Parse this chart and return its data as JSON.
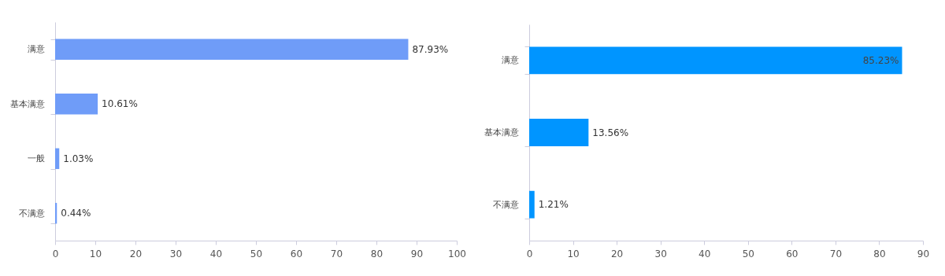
{
  "chart_data": [
    {
      "type": "bar",
      "orientation": "horizontal",
      "categories": [
        "满意",
        "基本满意",
        "一般",
        "不满意"
      ],
      "values": [
        87.93,
        10.61,
        1.03,
        0.44
      ],
      "value_labels": [
        "87.93%",
        "10.61%",
        "1.03%",
        "0.44%"
      ],
      "color": "#6f9cf8",
      "xlim": [
        0,
        100
      ],
      "xticks": [
        0,
        10,
        20,
        30,
        40,
        50,
        60,
        70,
        80,
        90,
        100
      ]
    },
    {
      "type": "bar",
      "orientation": "horizontal",
      "categories": [
        "满意",
        "基本满意",
        "不满意"
      ],
      "values": [
        85.23,
        13.56,
        1.21
      ],
      "value_labels": [
        "85.23%",
        "13.56%",
        "1.21%"
      ],
      "color": "#0095ff",
      "xlim": [
        0,
        90
      ],
      "xticks": [
        0,
        10,
        20,
        30,
        40,
        50,
        60,
        70,
        80,
        90
      ]
    }
  ]
}
